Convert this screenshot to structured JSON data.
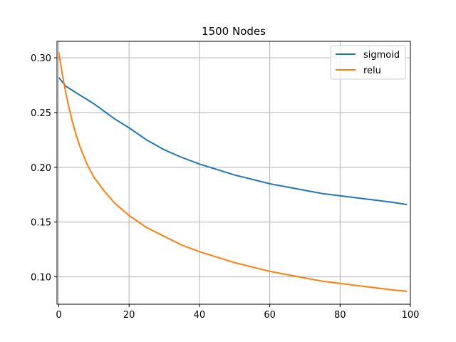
{
  "chart_data": {
    "type": "line",
    "title": "1500 Nodes",
    "xlabel": "",
    "ylabel": "",
    "xlim": [
      -0.5,
      100
    ],
    "ylim": [
      0.075,
      0.315
    ],
    "xticks": [
      0,
      20,
      40,
      60,
      80,
      100
    ],
    "yticks": [
      0.1,
      0.15,
      0.2,
      0.25,
      0.3
    ],
    "xtick_labels": [
      "0",
      "20",
      "40",
      "60",
      "80",
      "100"
    ],
    "ytick_labels": [
      "0.10",
      "0.15",
      "0.20",
      "0.25",
      "0.30"
    ],
    "grid": true,
    "legend_position": "top-right",
    "series": [
      {
        "name": "sigmoid",
        "color": "#1f77b4",
        "x": [
          0,
          1,
          2,
          3,
          5,
          8,
          10,
          13,
          16,
          20,
          25,
          30,
          35,
          40,
          45,
          50,
          55,
          60,
          65,
          70,
          75,
          80,
          85,
          90,
          95,
          99
        ],
        "y": [
          0.282,
          0.278,
          0.274,
          0.272,
          0.268,
          0.262,
          0.258,
          0.251,
          0.244,
          0.236,
          0.225,
          0.216,
          0.209,
          0.203,
          0.198,
          0.193,
          0.189,
          0.185,
          0.182,
          0.179,
          0.176,
          0.174,
          0.172,
          0.17,
          0.168,
          0.166
        ]
      },
      {
        "name": "relu",
        "color": "#ff7f0e",
        "x": [
          0,
          1,
          2,
          3,
          4,
          5,
          6,
          8,
          10,
          13,
          16,
          20,
          25,
          30,
          35,
          40,
          45,
          50,
          55,
          60,
          65,
          70,
          75,
          80,
          85,
          90,
          95,
          99
        ],
        "y": [
          0.305,
          0.285,
          0.268,
          0.253,
          0.24,
          0.229,
          0.219,
          0.203,
          0.191,
          0.178,
          0.167,
          0.156,
          0.145,
          0.137,
          0.129,
          0.123,
          0.118,
          0.113,
          0.109,
          0.105,
          0.102,
          0.099,
          0.096,
          0.094,
          0.092,
          0.09,
          0.088,
          0.087
        ]
      }
    ]
  }
}
